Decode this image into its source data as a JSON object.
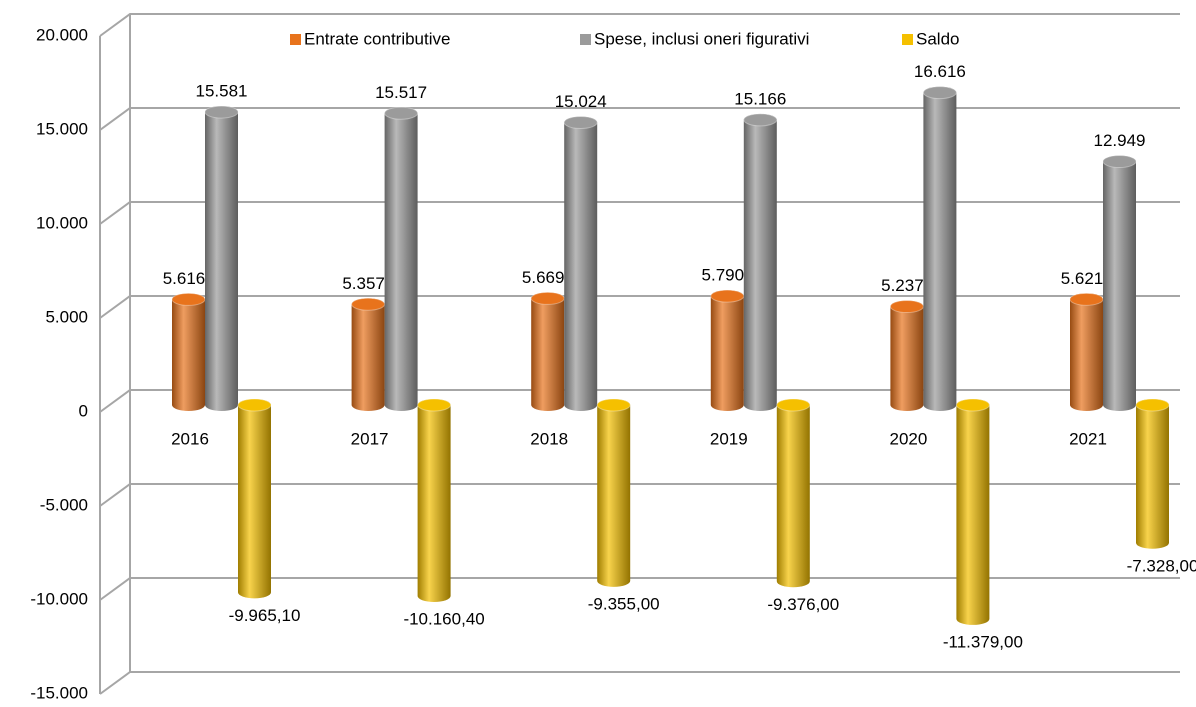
{
  "chart_data": {
    "type": "bar",
    "categories": [
      "2016",
      "2017",
      "2018",
      "2019",
      "2020",
      "2021"
    ],
    "series": [
      {
        "name": "Entrate contributive",
        "color": "#e8731c",
        "values": [
          5616,
          5357,
          5669,
          5790,
          5237,
          5621
        ],
        "value_labels": [
          "5.616",
          "5.357",
          "5.669",
          "5.790",
          "5.237",
          "5.621"
        ]
      },
      {
        "name": "Spese, inclusi oneri figurativi",
        "color": "#9b9b9b",
        "values": [
          15581,
          15517,
          15024,
          15166,
          16616,
          12949
        ],
        "value_labels": [
          "15.581",
          "15.517",
          "15.024",
          "15.166",
          "16.616",
          "12.949"
        ]
      },
      {
        "name": "Saldo",
        "color": "#f5c000",
        "values": [
          -9965.1,
          -10160.4,
          -9355,
          -9376,
          -11379,
          -7328
        ],
        "value_labels": [
          "-9.965,10",
          "-10.160,40",
          "-9.355,00",
          "-9.376,00",
          "-11.379,00",
          "-7.328,00"
        ]
      }
    ],
    "ylim": [
      -15000,
      20000
    ],
    "yticks": [
      {
        "value": -15000,
        "label": "-15.000"
      },
      {
        "value": -10000,
        "label": "-10.000"
      },
      {
        "value": -5000,
        "label": "-5.000"
      },
      0,
      {
        "value": 5000,
        "label": "5.000"
      },
      {
        "value": 10000,
        "label": "10.000"
      },
      {
        "value": 15000,
        "label": "15.000"
      },
      {
        "value": 20000,
        "label": "20.000"
      }
    ],
    "grid": true,
    "legend": "top"
  }
}
